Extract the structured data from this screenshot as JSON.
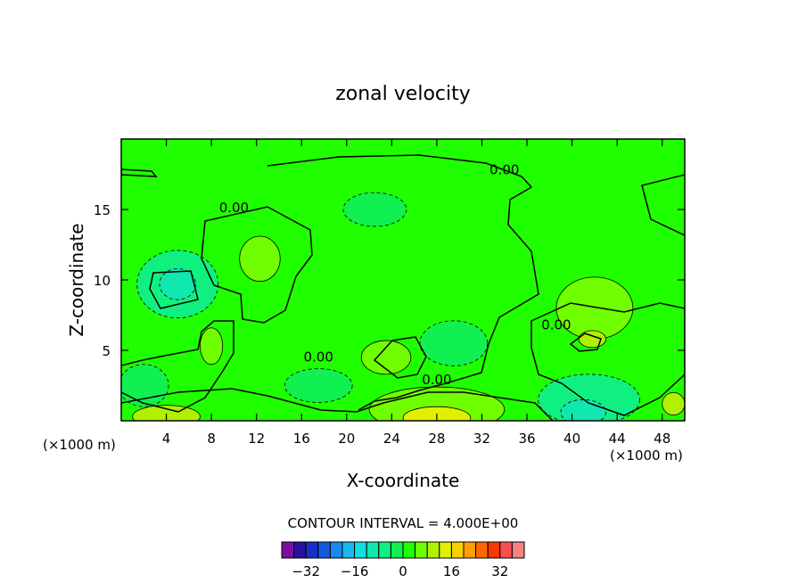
{
  "chart_data": {
    "type": "heatmap",
    "title": "zonal velocity",
    "xlabel": "X-coordinate",
    "ylabel": "Z-coordinate",
    "x_units_left": "(×1000 m)",
    "x_units_right": "(×1000 m)",
    "xlim": [
      0,
      50
    ],
    "ylim": [
      0,
      20
    ],
    "x_ticks": [
      4,
      8,
      12,
      16,
      20,
      24,
      28,
      32,
      36,
      40,
      44,
      48
    ],
    "y_ticks": [
      5,
      10,
      15
    ],
    "contour_interval_text": "CONTOUR INTERVAL = 4.000E+00",
    "contour_labels": [
      {
        "text": "0.00",
        "x": 10.0,
        "y": 14.8
      },
      {
        "text": "0.00",
        "x": 34.0,
        "y": 17.5
      },
      {
        "text": "0.00",
        "x": 17.5,
        "y": 4.2
      },
      {
        "text": "0.00",
        "x": 28.0,
        "y": 2.6
      },
      {
        "text": "0.00",
        "x": 38.6,
        "y": 6.5
      }
    ],
    "regions": [
      {
        "label": "negative cell",
        "cx": 5.0,
        "cy": 9.7,
        "rx": 3.6,
        "ry": 2.4,
        "value": -8
      },
      {
        "label": "negative cell core",
        "cx": 5.0,
        "cy": 9.7,
        "rx": 1.6,
        "ry": 1.1,
        "value": -12
      },
      {
        "label": "negative band",
        "cx": 2.0,
        "cy": 2.5,
        "rx": 2.2,
        "ry": 1.5,
        "value": -4
      },
      {
        "label": "negative upper",
        "cx": 22.5,
        "cy": 15.0,
        "rx": 2.8,
        "ry": 1.2,
        "value": -4
      },
      {
        "label": "negative middle",
        "cx": 29.5,
        "cy": 5.5,
        "rx": 3.0,
        "ry": 1.6,
        "value": -4
      },
      {
        "label": "negative lower",
        "cx": 17.5,
        "cy": 2.5,
        "rx": 3.0,
        "ry": 1.2,
        "value": -4
      },
      {
        "label": "negative bottom right",
        "cx": 41.5,
        "cy": 1.5,
        "rx": 4.5,
        "ry": 1.8,
        "value": -8
      },
      {
        "label": "negative bottom right core",
        "cx": 41.0,
        "cy": 0.6,
        "rx": 2.0,
        "ry": 0.9,
        "value": -12
      },
      {
        "label": "positive cell",
        "cx": 12.3,
        "cy": 11.5,
        "rx": 1.8,
        "ry": 1.6,
        "value": 4
      },
      {
        "label": "positive cell",
        "cx": 8.0,
        "cy": 5.3,
        "rx": 1.0,
        "ry": 1.3,
        "value": 4
      },
      {
        "label": "positive cell",
        "cx": 23.5,
        "cy": 4.5,
        "rx": 2.2,
        "ry": 1.2,
        "value": 4
      },
      {
        "label": "positive cell",
        "cx": 42.0,
        "cy": 8.0,
        "rx": 3.4,
        "ry": 2.2,
        "value": 4
      },
      {
        "label": "positive core",
        "cx": 41.8,
        "cy": 5.8,
        "rx": 1.2,
        "ry": 0.6,
        "value": 8
      },
      {
        "label": "positive bottom",
        "cx": 28.0,
        "cy": 0.8,
        "rx": 6.0,
        "ry": 1.6,
        "value": 4
      },
      {
        "label": "positive bottom core",
        "cx": 28.0,
        "cy": 0.2,
        "rx": 3.0,
        "ry": 0.8,
        "value": 12
      },
      {
        "label": "positive bottom left",
        "cx": 4.0,
        "cy": 0.3,
        "rx": 3.0,
        "ry": 0.8,
        "value": 8
      },
      {
        "label": "positive bottom right",
        "cx": 49.0,
        "cy": 1.2,
        "rx": 1.0,
        "ry": 0.8,
        "value": 8
      }
    ],
    "colorbar": {
      "tick_labels": [
        "−32",
        "−16",
        "0",
        "16",
        "32"
      ],
      "tick_values": [
        -32,
        -16,
        0,
        16,
        32
      ],
      "levels": [
        -40,
        -36,
        -32,
        -28,
        -24,
        -20,
        -16,
        -12,
        -8,
        -4,
        0,
        4,
        8,
        12,
        16,
        20,
        24,
        28,
        32,
        36,
        40
      ],
      "colors": [
        "#7b10a0",
        "#2a10a0",
        "#1830c8",
        "#1858e0",
        "#1888f0",
        "#18b8f0",
        "#10e0e0",
        "#10e8b0",
        "#10f080",
        "#10f050",
        "#20ff00",
        "#70ff00",
        "#b0f000",
        "#e0f000",
        "#f8d000",
        "#ffa000",
        "#ff6800",
        "#f83800",
        "#f85050",
        "#f88080"
      ]
    }
  }
}
